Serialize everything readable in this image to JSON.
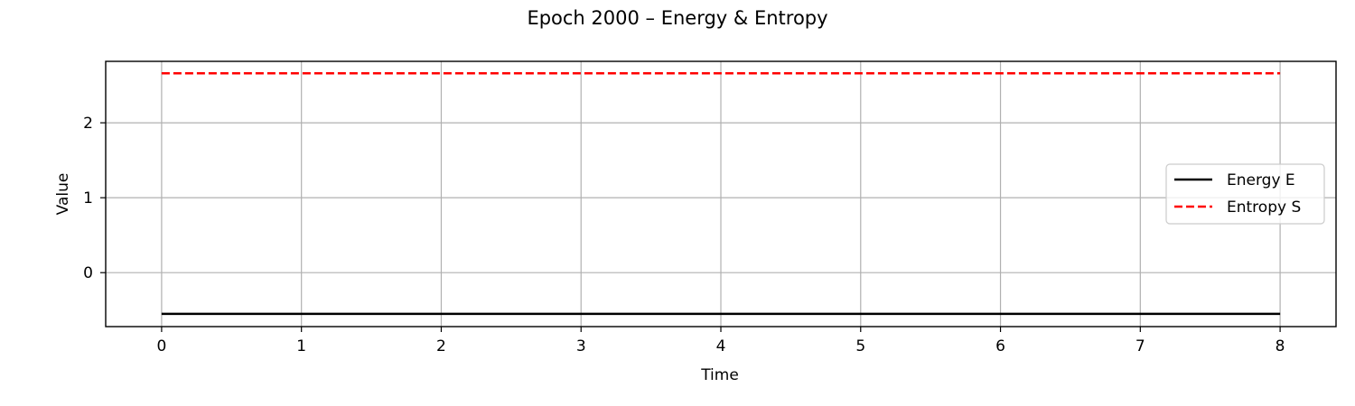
{
  "chart_data": {
    "type": "line",
    "title": "Epoch 2000 – Energy & Entropy",
    "xlabel": "Time",
    "ylabel": "Value",
    "xlim": [
      -0.4,
      8.4
    ],
    "ylim": [
      -0.72,
      2.82
    ],
    "xticks": [
      0,
      1,
      2,
      3,
      4,
      5,
      6,
      7,
      8
    ],
    "yticks": [
      0,
      1,
      2
    ],
    "grid": true,
    "legend_position": "center-right",
    "series": [
      {
        "name": "Energy E",
        "color": "#000000",
        "style": "solid",
        "x": [
          0,
          1,
          2,
          3,
          4,
          5,
          6,
          7,
          8
        ],
        "y": [
          -0.55,
          -0.55,
          -0.55,
          -0.55,
          -0.55,
          -0.55,
          -0.55,
          -0.55,
          -0.55
        ]
      },
      {
        "name": "Entropy S",
        "color": "#ff0000",
        "style": "dashed",
        "x": [
          0,
          1,
          2,
          3,
          4,
          5,
          6,
          7,
          8
        ],
        "y": [
          2.66,
          2.66,
          2.66,
          2.66,
          2.66,
          2.66,
          2.66,
          2.66,
          2.66
        ]
      }
    ]
  }
}
